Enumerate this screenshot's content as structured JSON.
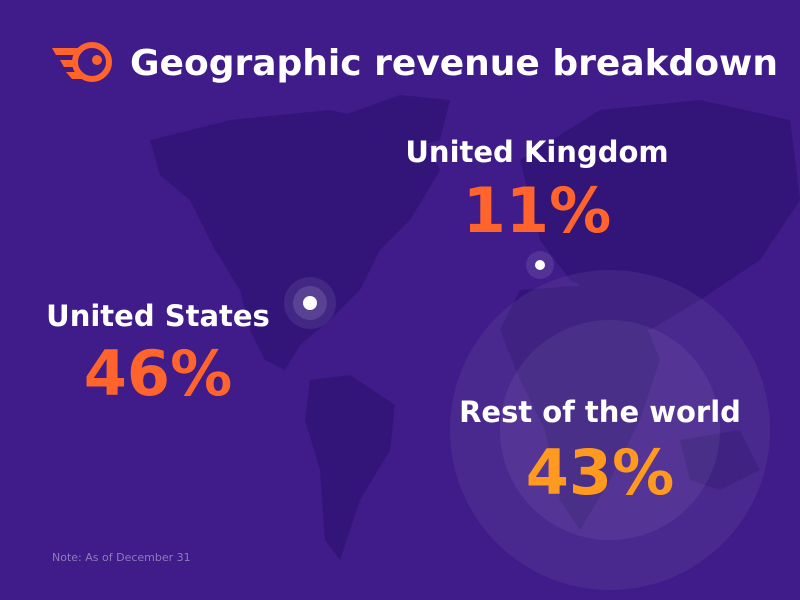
{
  "header": {
    "title": "Geographic revenue breakdown"
  },
  "regions": [
    {
      "name": "United States",
      "share": "46%"
    },
    {
      "name": "United Kingdom",
      "share": "11%"
    },
    {
      "name": "Rest of the world",
      "share": "43%"
    }
  ],
  "note": "Note: As of December 31"
}
